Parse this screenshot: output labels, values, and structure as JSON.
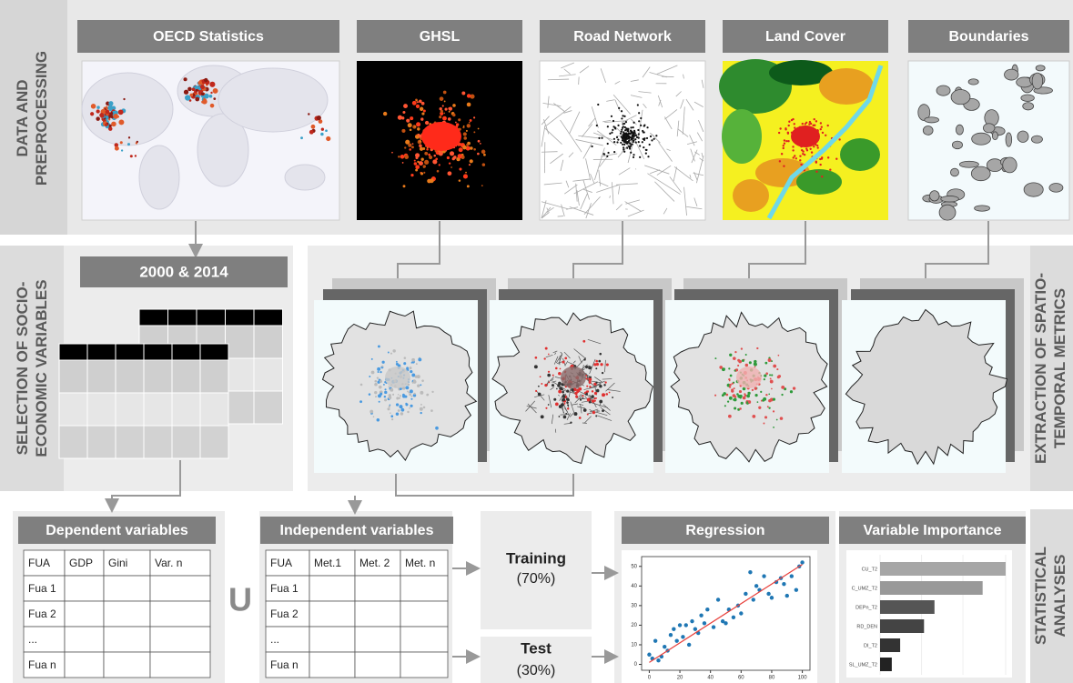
{
  "sections": {
    "data": [
      "DATA AND",
      "PREPROCESSING"
    ],
    "selection": [
      "SELECTION OF SOCIO-",
      "ECONOMIC VARIABLES"
    ],
    "extraction": [
      "EXTRACTION OF SPATIO-",
      "TEMPORAL METRICS"
    ],
    "statistical": [
      "STATISTICAL",
      "ANALYSES"
    ]
  },
  "sources": [
    "OECD Statistics",
    "GHSL",
    "Road Network",
    "Land Cover",
    "Boundaries"
  ],
  "years": "2000 & 2014",
  "dependent": {
    "title": "Dependent variables",
    "header": [
      "FUA",
      "GDP",
      "Gini",
      "Var. n"
    ],
    "rows": [
      "Fua 1",
      "Fua 2",
      "...",
      "Fua n"
    ]
  },
  "union": "U",
  "independent": {
    "title": "Independent variables",
    "header": [
      "FUA",
      "Met.1",
      "Met. 2",
      "Met. n"
    ],
    "rows": [
      "Fua 1",
      "Fua 2",
      "...",
      "Fua n"
    ]
  },
  "split": {
    "training": {
      "label": "Training",
      "share": "(70%)"
    },
    "test": {
      "label": "Test",
      "share": "(30%)"
    }
  },
  "regression": {
    "title": "Regression",
    "xlim": [
      -5,
      105
    ],
    "ylim": [
      -3,
      55
    ],
    "xticks": [
      0,
      20,
      40,
      60,
      80,
      100
    ],
    "yticks": [
      0,
      10,
      20,
      30,
      40,
      50
    ],
    "points": {
      "x": [
        0,
        2,
        4,
        6,
        8,
        10,
        12,
        14,
        16,
        18,
        20,
        22,
        24,
        26,
        28,
        30,
        32,
        34,
        36,
        38,
        42,
        45,
        48,
        50,
        52,
        55,
        58,
        60,
        63,
        66,
        68,
        70,
        72,
        75,
        78,
        80,
        83,
        86,
        88,
        90,
        93,
        96,
        98,
        100
      ],
      "y": [
        5,
        3,
        12,
        2,
        4,
        9,
        7,
        15,
        18,
        12,
        20,
        14,
        20,
        10,
        22,
        18,
        16,
        25,
        21,
        28,
        19,
        33,
        22,
        21,
        28,
        24,
        30,
        26,
        36,
        47,
        33,
        40,
        38,
        45,
        36,
        34,
        42,
        44,
        41,
        35,
        45,
        38,
        50,
        52
      ]
    },
    "fit": {
      "x": [
        0,
        100
      ],
      "y": [
        1,
        51
      ]
    },
    "point_color": "#1f77b4",
    "fit_color": "#e8413c"
  },
  "importance": {
    "title": "Variable Importance",
    "labels": [
      "CU_T2",
      "C_UMZ_T2",
      "DEPn_T2",
      "RD_DEN",
      "DI_T2",
      "SL_UMZ_T2"
    ],
    "values": [
      0.3,
      0.245,
      0.13,
      0.105,
      0.048,
      0.028
    ],
    "colors": [
      "#a6a6a6",
      "#999999",
      "#555555",
      "#444444",
      "#333333",
      "#222222"
    ]
  }
}
